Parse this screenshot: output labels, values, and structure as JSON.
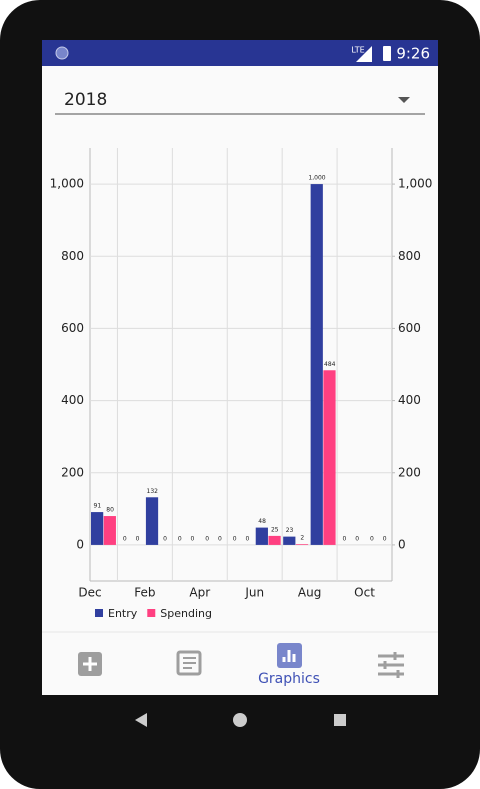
{
  "status_bar": {
    "network": "LTE",
    "time": "9:26"
  },
  "dropdown": {
    "value": "2018"
  },
  "chart_data": {
    "type": "bar",
    "categories": [
      "Dec",
      null,
      "Feb",
      null,
      "Apr",
      null,
      "Jun",
      null,
      "Aug",
      null,
      "Oct"
    ],
    "series": [
      {
        "name": "Entry",
        "color": "#303f9f",
        "values": [
          91,
          0,
          132,
          0,
          0,
          0,
          48,
          23,
          1000,
          0,
          0
        ],
        "value_labels": [
          "91",
          "0",
          "132",
          "0",
          "0",
          "0",
          "48",
          "23",
          "1,000",
          "0",
          "0"
        ]
      },
      {
        "name": "Spending",
        "color": "#ff4081",
        "values": [
          80,
          0,
          0,
          0,
          0,
          0,
          25,
          2,
          484,
          0,
          0
        ]
      }
    ],
    "ylim": [
      -100,
      1100
    ],
    "yticks": [
      0,
      200,
      400,
      600,
      800,
      {
        "value": 1000,
        "label": "1,000"
      }
    ],
    "y2lim": [
      -100,
      1100
    ],
    "y2ticks": [
      0,
      200,
      400,
      600,
      800,
      {
        "value": 1000,
        "label": "1,000"
      }
    ],
    "grid": true,
    "legend": "bottom-left"
  },
  "bottom_nav": {
    "selected_label": "Graphics"
  }
}
